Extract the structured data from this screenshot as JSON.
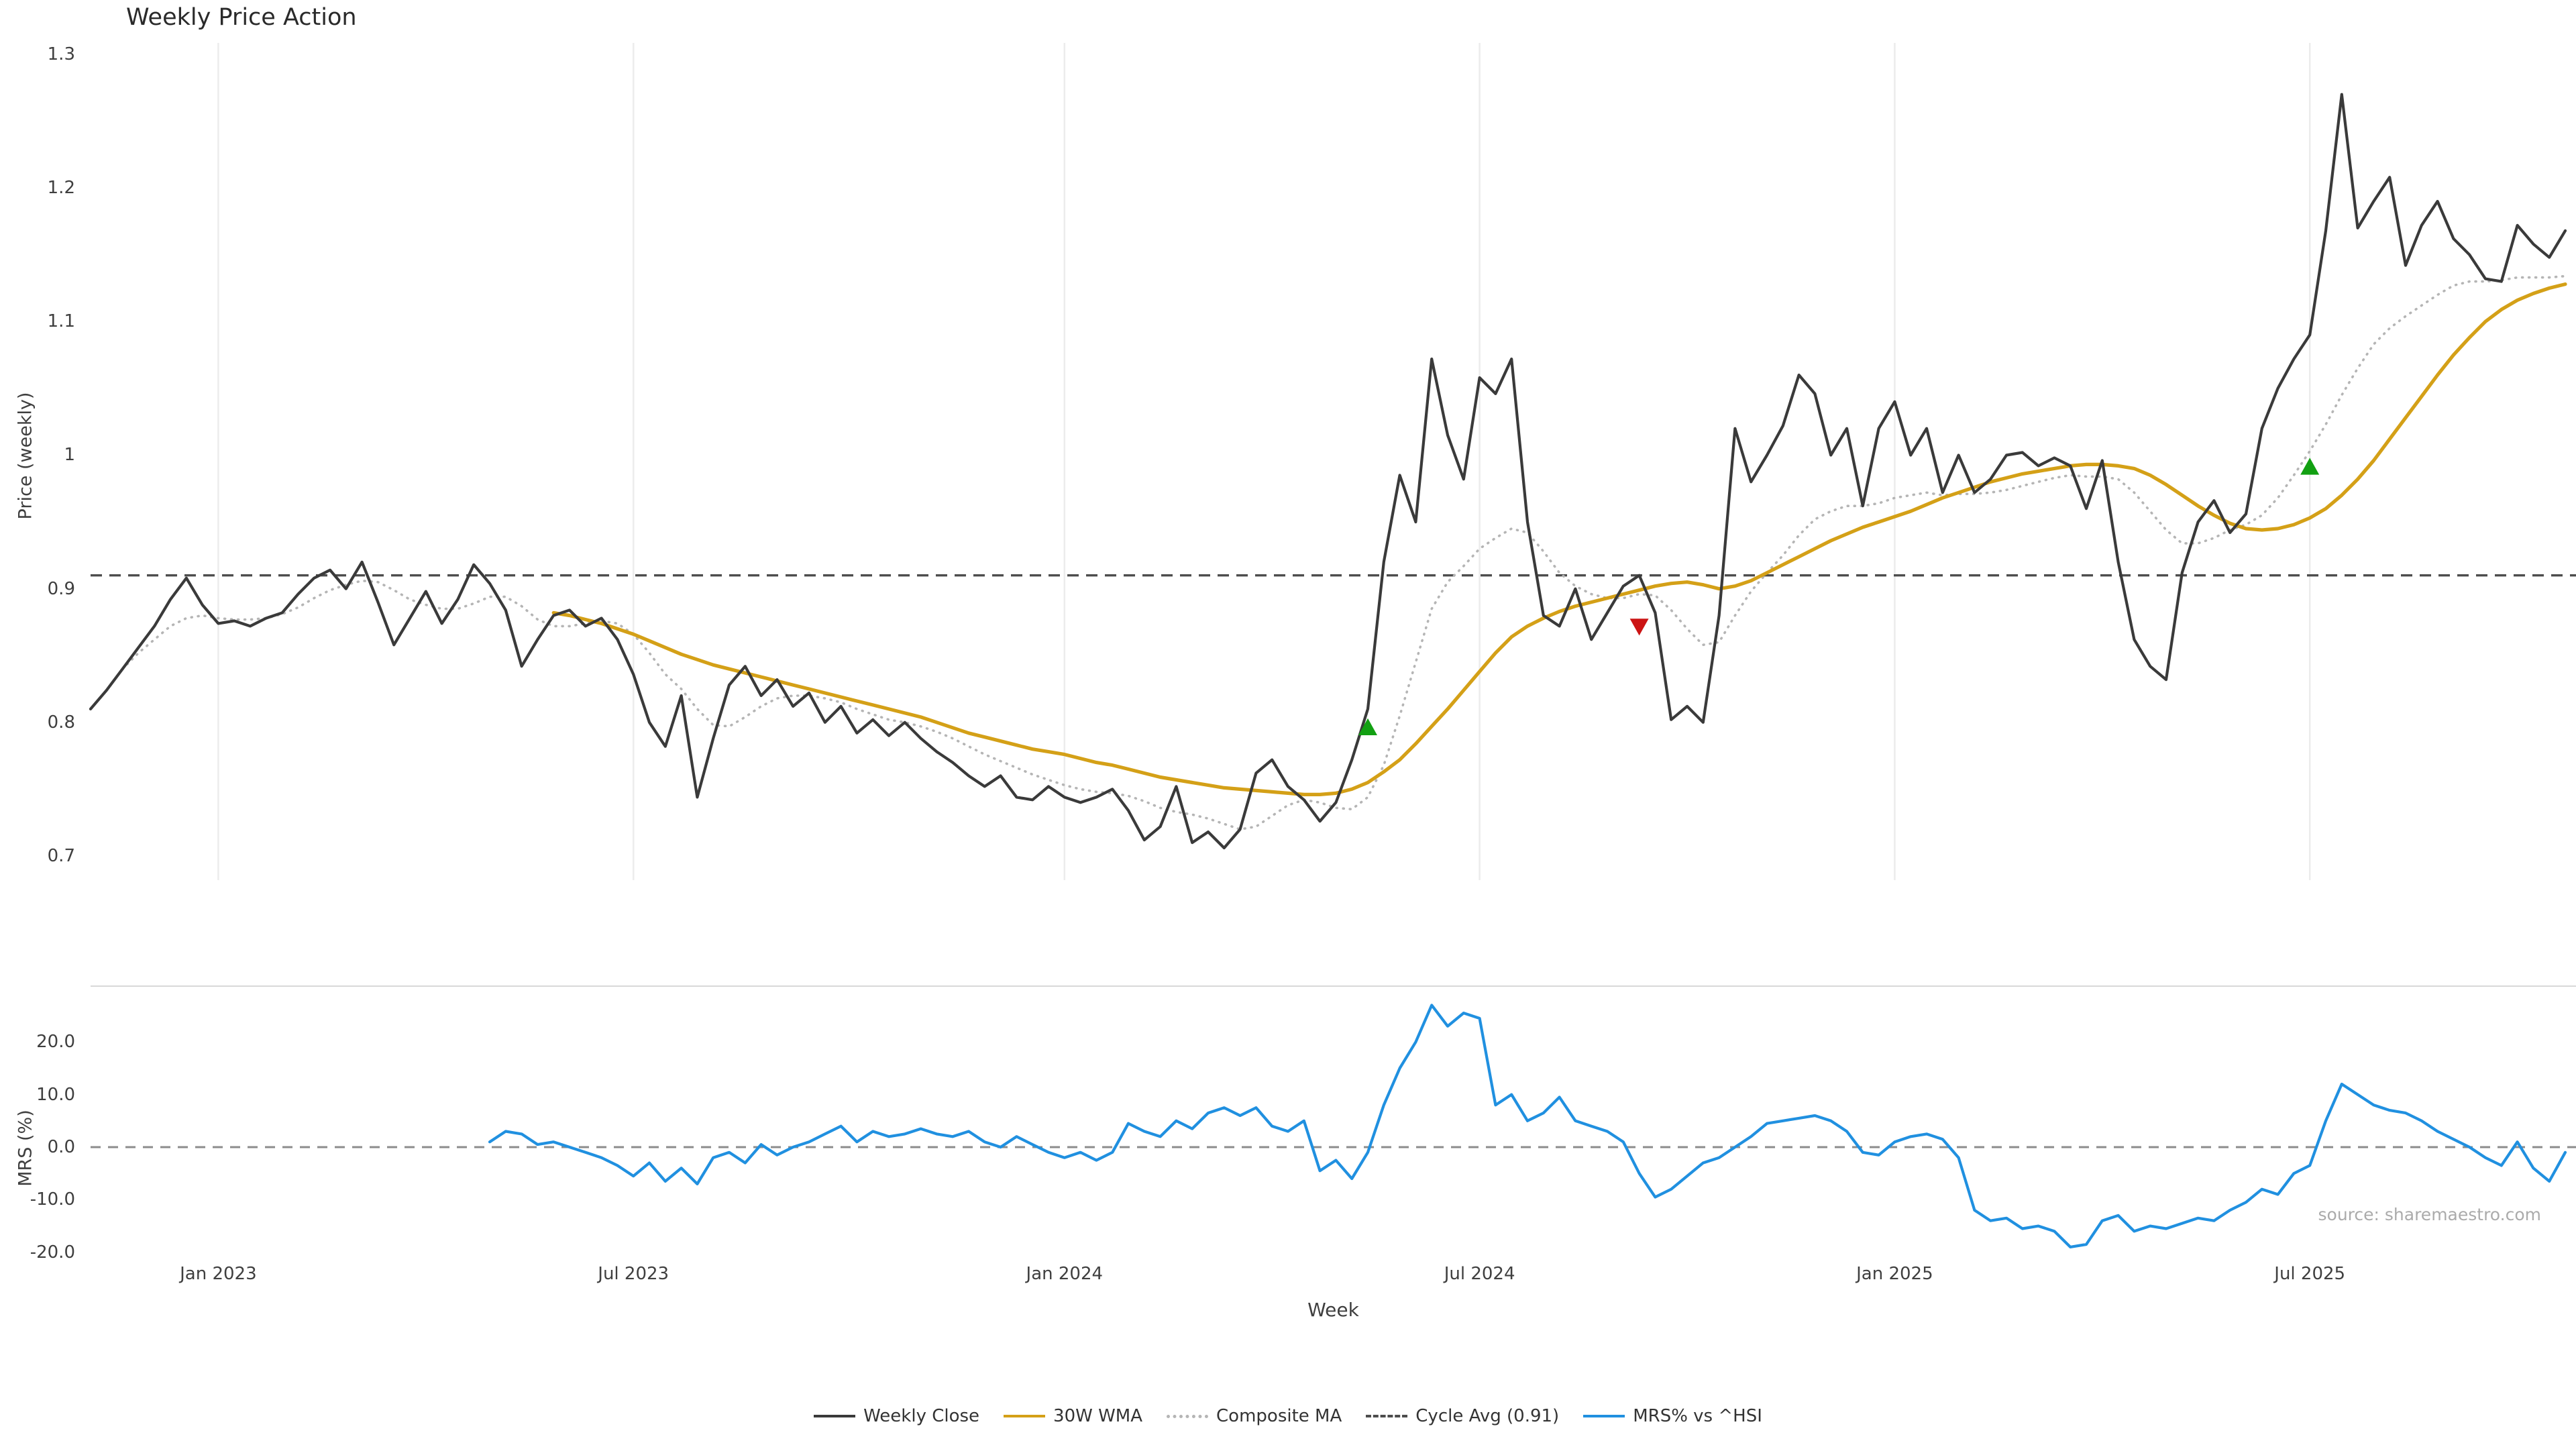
{
  "title": "Weekly Price Action",
  "source": "source: sharemaestro.com",
  "x_axis": {
    "label": "Week",
    "ticks": [
      {
        "label": "Jan 2023",
        "week_index": 8
      },
      {
        "label": "Jul 2023",
        "week_index": 34
      },
      {
        "label": "Jan 2024",
        "week_index": 61
      },
      {
        "label": "Jul 2024",
        "week_index": 87
      },
      {
        "label": "Jan 2025",
        "week_index": 113
      },
      {
        "label": "Jul 2025",
        "week_index": 139
      }
    ]
  },
  "legend": {
    "items": [
      {
        "label": "Weekly Close",
        "color": "#3a3a3a",
        "line": "solid"
      },
      {
        "label": "30W WMA",
        "color": "#d4a017",
        "line": "solid"
      },
      {
        "label": "Composite MA",
        "color": "#b5b5b5",
        "line": "dotted"
      },
      {
        "label": "Cycle Avg (0.91)",
        "color": "#4d4d4d",
        "line": "dashed"
      },
      {
        "label": "MRS% vs ^HSI",
        "color": "#2090e0",
        "line": "solid"
      }
    ]
  },
  "chart_data": [
    {
      "id": "price",
      "type": "line",
      "title": "Weekly Price Action",
      "xlabel": "Week",
      "ylabel": "Price (weekly)",
      "ylim": [
        0.668,
        1.312
      ],
      "grid": "vertical-only",
      "n_points": 156,
      "yticks": [
        {
          "label": "0.7",
          "value": 0.7
        },
        {
          "label": "0.8",
          "value": 0.8
        },
        {
          "label": "0.9",
          "value": 0.9
        },
        {
          "label": "1",
          "value": 1.0
        },
        {
          "label": "1.1",
          "value": 1.1
        },
        {
          "label": "1.2",
          "value": 1.2
        },
        {
          "label": "1.3",
          "value": 1.3
        }
      ],
      "hline": {
        "name": "Cycle Avg",
        "value": 0.91,
        "color": "#4d4d4d",
        "line": "dashed"
      },
      "series": [
        {
          "name": "Weekly Close",
          "color": "#3a3a3a",
          "line": "solid",
          "start": 0,
          "values": [
            0.81,
            0.824,
            0.84,
            0.856,
            0.872,
            0.892,
            0.908,
            0.888,
            0.874,
            0.876,
            0.872,
            0.878,
            0.882,
            0.896,
            0.908,
            0.914,
            0.9,
            0.92,
            0.89,
            0.858,
            0.878,
            0.898,
            0.874,
            0.892,
            0.918,
            0.904,
            0.884,
            0.842,
            0.862,
            0.88,
            0.884,
            0.872,
            0.878,
            0.862,
            0.836,
            0.8,
            0.782,
            0.82,
            0.744,
            0.788,
            0.828,
            0.842,
            0.82,
            0.832,
            0.812,
            0.822,
            0.8,
            0.812,
            0.792,
            0.802,
            0.79,
            0.8,
            0.788,
            0.778,
            0.77,
            0.76,
            0.752,
            0.76,
            0.744,
            0.742,
            0.752,
            0.744,
            0.74,
            0.744,
            0.75,
            0.734,
            0.712,
            0.722,
            0.752,
            0.71,
            0.718,
            0.706,
            0.72,
            0.762,
            0.772,
            0.752,
            0.742,
            0.726,
            0.74,
            0.772,
            0.81,
            0.92,
            0.985,
            0.95,
            1.072,
            1.015,
            0.982,
            1.058,
            1.046,
            1.072,
            0.95,
            0.88,
            0.872,
            0.9,
            0.862,
            0.882,
            0.902,
            0.91,
            0.882,
            0.802,
            0.812,
            0.8,
            0.88,
            1.02,
            0.98,
            1.0,
            1.022,
            1.06,
            1.046,
            1.0,
            1.02,
            0.962,
            1.02,
            1.04,
            1.0,
            1.02,
            0.972,
            1.0,
            0.972,
            0.982,
            1.0,
            1.002,
            0.992,
            0.998,
            0.992,
            0.96,
            0.996,
            0.92,
            0.862,
            0.842,
            0.832,
            0.912,
            0.95,
            0.966,
            0.942,
            0.956,
            1.02,
            1.05,
            1.072,
            1.09,
            1.168,
            1.27,
            1.17,
            1.19,
            1.208,
            1.142,
            1.172,
            1.19,
            1.162,
            1.15,
            1.132,
            1.13,
            1.172,
            1.158,
            1.148,
            1.168
          ]
        },
        {
          "name": "30W WMA",
          "color": "#d4a017",
          "line": "solid",
          "start": 29,
          "values": [
            0.882,
            0.88,
            0.877,
            0.874,
            0.87,
            0.866,
            0.861,
            0.856,
            0.851,
            0.847,
            0.843,
            0.84,
            0.837,
            0.834,
            0.831,
            0.828,
            0.825,
            0.822,
            0.819,
            0.816,
            0.813,
            0.81,
            0.807,
            0.804,
            0.8,
            0.796,
            0.792,
            0.789,
            0.786,
            0.783,
            0.78,
            0.778,
            0.776,
            0.773,
            0.77,
            0.768,
            0.765,
            0.762,
            0.759,
            0.757,
            0.755,
            0.753,
            0.751,
            0.75,
            0.749,
            0.748,
            0.747,
            0.746,
            0.746,
            0.747,
            0.75,
            0.755,
            0.763,
            0.772,
            0.784,
            0.797,
            0.81,
            0.824,
            0.838,
            0.852,
            0.864,
            0.872,
            0.878,
            0.883,
            0.887,
            0.89,
            0.893,
            0.896,
            0.899,
            0.902,
            0.904,
            0.905,
            0.903,
            0.9,
            0.902,
            0.906,
            0.912,
            0.918,
            0.924,
            0.93,
            0.936,
            0.941,
            0.946,
            0.95,
            0.954,
            0.958,
            0.963,
            0.968,
            0.972,
            0.976,
            0.98,
            0.983,
            0.986,
            0.988,
            0.99,
            0.992,
            0.993,
            0.993,
            0.992,
            0.99,
            0.985,
            0.978,
            0.97,
            0.962,
            0.955,
            0.949,
            0.945,
            0.944,
            0.945,
            0.948,
            0.953,
            0.96,
            0.97,
            0.982,
            0.996,
            1.012,
            1.028,
            1.044,
            1.06,
            1.075,
            1.088,
            1.1,
            1.109,
            1.116,
            1.121,
            1.125,
            1.128
          ]
        },
        {
          "name": "Composite MA",
          "color": "#b5b5b5",
          "line": "dotted",
          "start": 2,
          "values": [
            0.84,
            0.852,
            0.862,
            0.872,
            0.878,
            0.88,
            0.878,
            0.877,
            0.877,
            0.878,
            0.881,
            0.886,
            0.893,
            0.899,
            0.903,
            0.906,
            0.905,
            0.899,
            0.892,
            0.888,
            0.885,
            0.885,
            0.889,
            0.894,
            0.894,
            0.887,
            0.877,
            0.872,
            0.872,
            0.874,
            0.876,
            0.874,
            0.866,
            0.852,
            0.836,
            0.825,
            0.81,
            0.798,
            0.797,
            0.804,
            0.812,
            0.818,
            0.82,
            0.82,
            0.818,
            0.815,
            0.81,
            0.806,
            0.802,
            0.8,
            0.797,
            0.793,
            0.788,
            0.782,
            0.776,
            0.771,
            0.766,
            0.761,
            0.757,
            0.753,
            0.75,
            0.748,
            0.747,
            0.745,
            0.741,
            0.736,
            0.733,
            0.731,
            0.728,
            0.724,
            0.72,
            0.722,
            0.73,
            0.738,
            0.742,
            0.74,
            0.736,
            0.735,
            0.744,
            0.768,
            0.805,
            0.845,
            0.885,
            0.905,
            0.917,
            0.93,
            0.938,
            0.945,
            0.942,
            0.928,
            0.912,
            0.902,
            0.896,
            0.893,
            0.893,
            0.896,
            0.895,
            0.884,
            0.87,
            0.858,
            0.86,
            0.88,
            0.898,
            0.912,
            0.925,
            0.94,
            0.952,
            0.958,
            0.962,
            0.962,
            0.964,
            0.968,
            0.97,
            0.972,
            0.97,
            0.971,
            0.971,
            0.972,
            0.974,
            0.977,
            0.98,
            0.983,
            0.985,
            0.984,
            0.984,
            0.982,
            0.972,
            0.958,
            0.944,
            0.934,
            0.934,
            0.938,
            0.944,
            0.948,
            0.955,
            0.968,
            0.985,
            1.003,
            1.023,
            1.045,
            1.065,
            1.083,
            1.095,
            1.104,
            1.112,
            1.12,
            1.127,
            1.13,
            1.13,
            1.131,
            1.133,
            1.133,
            1.133,
            1.134
          ]
        }
      ],
      "markers": [
        {
          "name": "buy-signal-1",
          "shape": "triangle-up",
          "color": "#12a012",
          "index": 80,
          "value": 0.796
        },
        {
          "name": "sell-signal-1",
          "shape": "triangle-down",
          "color": "#cc1414",
          "index": 97,
          "value": 0.872
        },
        {
          "name": "buy-signal-2",
          "shape": "triangle-up",
          "color": "#12a012",
          "index": 139,
          "value": 0.991
        }
      ]
    },
    {
      "id": "mrs",
      "type": "line",
      "xlabel": "Week",
      "ylabel": "MRS (%)",
      "ylim": [
        -24.5,
        31
      ],
      "grid": "off",
      "yticks": [
        {
          "label": "-20.0",
          "value": -20
        },
        {
          "label": "-10.0",
          "value": -10
        },
        {
          "label": "0.0",
          "value": 0
        },
        {
          "label": "10.0",
          "value": 10
        },
        {
          "label": "20.0",
          "value": 20
        }
      ],
      "hline": {
        "name": "zero-line",
        "value": 0,
        "color": "#8c8c8c",
        "line": "dashed"
      },
      "series": [
        {
          "name": "MRS% vs ^HSI",
          "color": "#2090e0",
          "line": "solid",
          "start": 25,
          "values": [
            1,
            3,
            2.5,
            0.5,
            1,
            0,
            -1,
            -2,
            -3.5,
            -5.5,
            -3,
            -6.5,
            -4,
            -7,
            -2,
            -1,
            -3,
            0.5,
            -1.5,
            0,
            1,
            2.5,
            4,
            1,
            3,
            2,
            2.5,
            3.5,
            2.5,
            2,
            3,
            1,
            0,
            2,
            0.5,
            -1,
            -2,
            -1,
            -2.5,
            -1,
            4.5,
            3,
            2,
            5,
            3.5,
            6.5,
            7.5,
            6,
            7.5,
            4,
            3,
            5,
            -4.5,
            -2.5,
            -6,
            -1,
            8,
            15,
            20,
            27,
            23,
            25.5,
            24.5,
            8,
            10,
            5,
            6.5,
            9.5,
            5,
            4,
            3,
            1,
            -5,
            -9.5,
            -8,
            -5.5,
            -3,
            -2,
            0,
            2,
            4.5,
            5,
            5.5,
            6,
            5,
            3,
            -1,
            -1.5,
            1,
            2,
            2.5,
            1.5,
            -2,
            -12,
            -14,
            -13.5,
            -15.5,
            -15,
            -16,
            -19,
            -18.5,
            -14,
            -13,
            -16,
            -15,
            -15.5,
            -14.5,
            -13.5,
            -14,
            -12,
            -10.5,
            -8,
            -9,
            -5,
            -3.5,
            5,
            12,
            10,
            8,
            7,
            6.5,
            5,
            3,
            1.5,
            0,
            -2,
            -3.5,
            1,
            -4,
            -6.5,
            -1
          ]
        }
      ]
    }
  ]
}
